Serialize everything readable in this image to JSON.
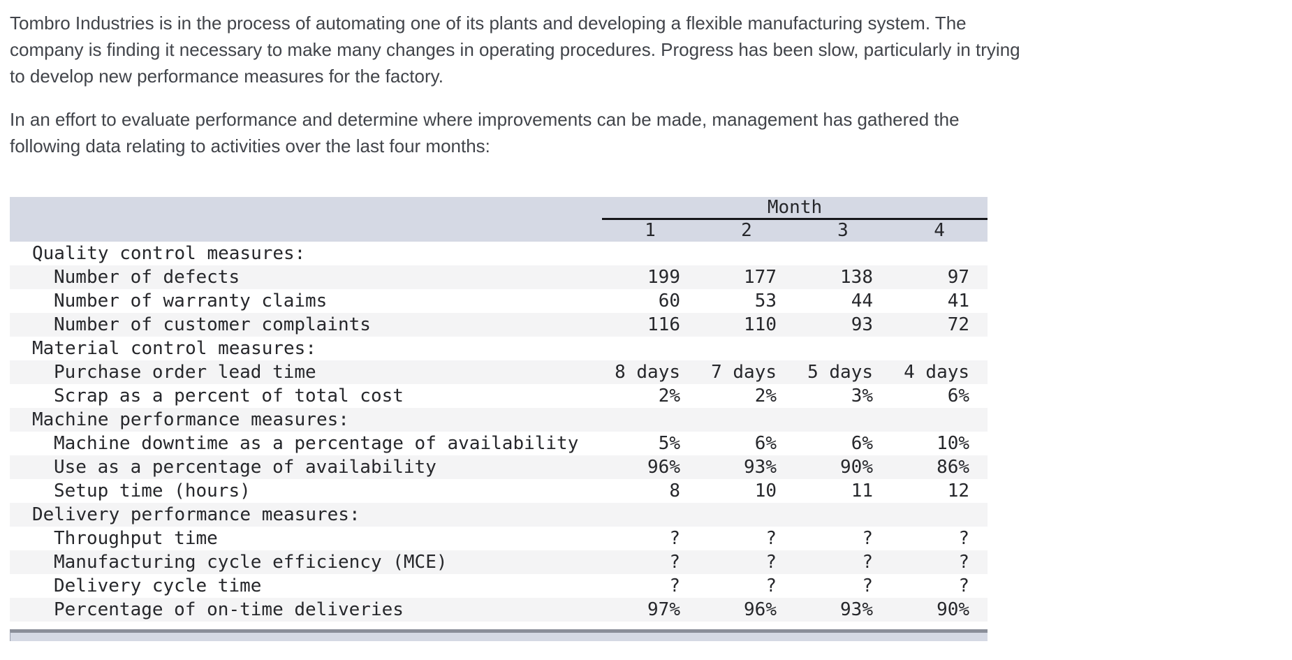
{
  "intro": {
    "paragraphs": [
      {
        "lines": [
          "Tombro Industries is in the process of automating one of its plants and developing a flexible manufacturing system. The",
          "company is finding it necessary to make many changes in operating procedures. Progress has been slow, particularly in trying",
          "to develop new performance measures for the factory."
        ]
      },
      {
        "lines": [
          "In an effort to evaluate performance and determine where improvements can be made, management has gathered the",
          "following data relating to activities over the last four months:"
        ]
      }
    ]
  },
  "table": {
    "month_header": "Month",
    "month_columns": [
      "1",
      "2",
      "3",
      "4"
    ],
    "sections": [
      {
        "heading": "Quality control measures:",
        "rows": [
          {
            "label": "Number of defects",
            "values": [
              "199",
              "177",
              "138",
              "97"
            ]
          },
          {
            "label": "Number of warranty claims",
            "values": [
              "60",
              "53",
              "44",
              "41"
            ]
          },
          {
            "label": "Number of customer complaints",
            "values": [
              "116",
              "110",
              "93",
              "72"
            ]
          }
        ]
      },
      {
        "heading": "Material control measures:",
        "rows": [
          {
            "label": "Purchase order lead time",
            "values": [
              "8 days",
              "7 days",
              "5 days",
              "4 days"
            ]
          },
          {
            "label": "Scrap as a percent of total cost",
            "values": [
              "2%",
              "2%",
              "3%",
              "6%"
            ]
          }
        ]
      },
      {
        "heading": "Machine performance measures:",
        "rows": [
          {
            "label": "Machine downtime as a percentage of availability",
            "values": [
              "5%",
              "6%",
              "6%",
              "10%"
            ]
          },
          {
            "label": "Use as a percentage of availability",
            "values": [
              "96%",
              "93%",
              "90%",
              "86%"
            ]
          },
          {
            "label": "Setup time (hours)",
            "values": [
              "8",
              "10",
              "11",
              "12"
            ]
          }
        ]
      },
      {
        "heading": "Delivery performance measures:",
        "rows": [
          {
            "label": "Throughput time",
            "values": [
              "?",
              "?",
              "?",
              "?"
            ]
          },
          {
            "label": "Manufacturing cycle efficiency (MCE)",
            "values": [
              "?",
              "?",
              "?",
              "?"
            ]
          },
          {
            "label": "Delivery cycle time",
            "values": [
              "?",
              "?",
              "?",
              "?"
            ]
          },
          {
            "label": "Percentage of on-time deliveries",
            "values": [
              "97%",
              "96%",
              "93%",
              "90%"
            ]
          }
        ]
      }
    ]
  },
  "colors": {
    "header_band": "#d5d9e4",
    "alt_row": "#f4f4f5",
    "month_underline": "#16171b",
    "table_text": "#26272b",
    "paragraph_text": "#41444a",
    "next_strip_border": "#8a8e99"
  }
}
